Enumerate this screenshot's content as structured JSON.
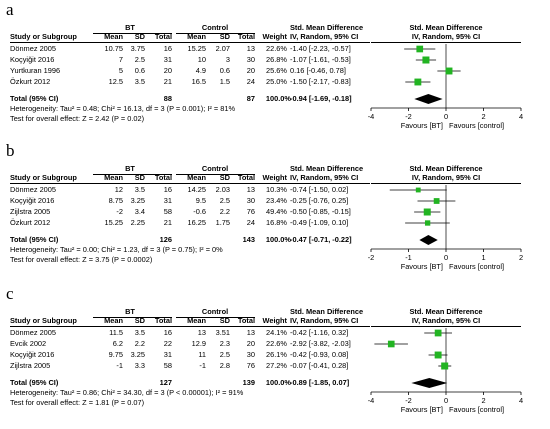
{
  "panels": [
    {
      "label": "a",
      "group1": "BT",
      "group2": "Control",
      "headers": {
        "study": "Study or Subgroup",
        "mean1": "Mean",
        "sd1": "SD",
        "total1": "Total",
        "mean2": "Mean",
        "sd2": "SD",
        "total2": "Total",
        "weight": "Weight",
        "smd_top": "Std. Mean Difference",
        "smd_method": "IV, Random, 95% CI",
        "plot_top": "Std. Mean Difference",
        "plot_method": "IV, Random, 95% CI"
      },
      "rows": [
        {
          "study": "Dönmez 2005",
          "mean1": "10.75",
          "sd1": "3.75",
          "total1": "16",
          "mean2": "15.25",
          "sd2": "2.07",
          "total2": "13",
          "weight": "22.6%",
          "ci_text": "-1.40 [-2.23, -0.57]"
        },
        {
          "study": "Koçyiğit 2016",
          "mean1": "7",
          "sd1": "2.5",
          "total1": "31",
          "mean2": "10",
          "sd2": "3",
          "total2": "30",
          "weight": "26.8%",
          "ci_text": "-1.07 [-1.61, -0.53]"
        },
        {
          "study": "Yurtkuran 1996",
          "mean1": "5",
          "sd1": "0.6",
          "total1": "20",
          "mean2": "4.9",
          "sd2": "0.6",
          "total2": "20",
          "weight": "25.6%",
          "ci_text": "0.16 [-0.46, 0.78]"
        },
        {
          "study": "Özkurt 2012",
          "mean1": "12.5",
          "sd1": "3.5",
          "total1": "21",
          "mean2": "16.5",
          "sd2": "1.5",
          "total2": "24",
          "weight": "25.0%",
          "ci_text": "-1.50 [-2.17, -0.83]"
        }
      ],
      "total": {
        "label": "Total (95% CI)",
        "total1": "88",
        "total2": "87",
        "weight": "100.0%",
        "ci_text": "-0.94 [-1.69, -0.18]"
      },
      "heterogeneity": "Heterogeneity: Tau² = 0.48; Chi² = 16.13, df = 3 (P = 0.001); I² = 81%",
      "overall": "Test for overall effect: Z = 2.42 (P = 0.02)",
      "axis": {
        "ticks": [
          "-4",
          "-2",
          "0",
          "2",
          "4"
        ],
        "left_label": "Favours [BT]",
        "right_label": "Favours [control]"
      }
    },
    {
      "label": "b",
      "group1": "BT",
      "group2": "Control",
      "headers": {
        "study": "Study or Subgroup",
        "mean1": "Mean",
        "sd1": "SD",
        "total1": "Total",
        "mean2": "Mean",
        "sd2": "SD",
        "total2": "Total",
        "weight": "Weight",
        "smd_top": "Std. Mean Difference",
        "smd_method": "IV, Random, 95% CI",
        "plot_top": "Std. Mean Difference",
        "plot_method": "IV, Random, 95% CI"
      },
      "rows": [
        {
          "study": "Dönmez 2005",
          "mean1": "12",
          "sd1": "3.5",
          "total1": "16",
          "mean2": "14.25",
          "sd2": "2.03",
          "total2": "13",
          "weight": "10.3%",
          "ci_text": "-0.74 [-1.50, 0.02]"
        },
        {
          "study": "Koçyiğit 2016",
          "mean1": "8.75",
          "sd1": "3.25",
          "total1": "31",
          "mean2": "9.5",
          "sd2": "2.5",
          "total2": "30",
          "weight": "23.4%",
          "ci_text": "-0.25 [-0.76, 0.25]"
        },
        {
          "study": "Zijlstra 2005",
          "mean1": "-2",
          "sd1": "3.4",
          "total1": "58",
          "mean2": "-0.6",
          "sd2": "2.2",
          "total2": "76",
          "weight": "49.4%",
          "ci_text": "-0.50 [-0.85, -0.15]"
        },
        {
          "study": "Özkurt 2012",
          "mean1": "15.25",
          "sd1": "2.25",
          "total1": "21",
          "mean2": "16.25",
          "sd2": "1.75",
          "total2": "24",
          "weight": "16.8%",
          "ci_text": "-0.49 [-1.09, 0.10]"
        }
      ],
      "total": {
        "label": "Total (95% CI)",
        "total1": "126",
        "total2": "143",
        "weight": "100.0%",
        "ci_text": "-0.47 [-0.71, -0.22]"
      },
      "heterogeneity": "Heterogeneity: Tau² = 0.00; Chi² = 1.23, df = 3 (P = 0.75); I² = 0%",
      "overall": "Test for overall effect: Z = 3.75 (P = 0.0002)",
      "axis": {
        "ticks": [
          "-2",
          "-1",
          "0",
          "1",
          "2"
        ],
        "left_label": "Favours [BT]",
        "right_label": "Favours [control]"
      }
    },
    {
      "label": "c",
      "group1": "BT",
      "group2": "Control",
      "headers": {
        "study": "Study or Subgroup",
        "mean1": "Mean",
        "sd1": "SD",
        "total1": "Total",
        "mean2": "Mean",
        "sd2": "SD",
        "total2": "Total",
        "weight": "Weight",
        "smd_top": "Std. Mean Difference",
        "smd_method": "IV, Random, 95% CI",
        "plot_top": "Std. Mean Difference",
        "plot_method": "IV, Random, 95% CI"
      },
      "rows": [
        {
          "study": "Dönmez 2005",
          "mean1": "11.5",
          "sd1": "3.5",
          "total1": "16",
          "mean2": "13",
          "sd2": "3.51",
          "total2": "13",
          "weight": "24.1%",
          "ci_text": "-0.42 [-1.16, 0.32]"
        },
        {
          "study": "Evcik 2002",
          "mean1": "6.2",
          "sd1": "2.2",
          "total1": "22",
          "mean2": "12.9",
          "sd2": "2.3",
          "total2": "20",
          "weight": "22.6%",
          "ci_text": "-2.92 [-3.82, -2.03]"
        },
        {
          "study": "Koçyiğit 2016",
          "mean1": "9.75",
          "sd1": "3.25",
          "total1": "31",
          "mean2": "11",
          "sd2": "2.5",
          "total2": "30",
          "weight": "26.1%",
          "ci_text": "-0.42 [-0.93, 0.08]"
        },
        {
          "study": "Zijlstra 2005",
          "mean1": "-1",
          "sd1": "3.3",
          "total1": "58",
          "mean2": "-1",
          "sd2": "2.8",
          "total2": "76",
          "weight": "27.2%",
          "ci_text": "-0.07 [-0.41, 0.28]"
        }
      ],
      "total": {
        "label": "Total (95% CI)",
        "total1": "127",
        "total2": "139",
        "weight": "100.0%",
        "ci_text": "-0.89 [-1.85, 0.07]"
      },
      "heterogeneity": "Heterogeneity: Tau² = 0.86; Chi² = 34.30, df = 3 (P < 0.00001); I² = 91%",
      "overall": "Test for overall effect: Z = 1.81 (P = 0.07)",
      "axis": {
        "ticks": [
          "-4",
          "-2",
          "0",
          "2",
          "4"
        ],
        "left_label": "Favours [BT]",
        "right_label": "Favours [control]"
      }
    }
  ],
  "colors": {
    "square": "#22b422",
    "diamond": "#000000",
    "line": "#000000"
  },
  "chart_data": [
    {
      "type": "forest",
      "panel": "a",
      "studies": [
        "Dönmez 2005",
        "Koçyiğit 2016",
        "Yurtkuran 1996",
        "Özkurt 2012"
      ],
      "estimate": [
        -1.4,
        -1.07,
        0.16,
        -1.5
      ],
      "ci_low": [
        -2.23,
        -1.61,
        -0.46,
        -2.17
      ],
      "ci_high": [
        -0.57,
        -0.53,
        0.78,
        -0.83
      ],
      "weight": [
        22.6,
        26.8,
        25.6,
        25.0
      ],
      "pooled": {
        "estimate": -0.94,
        "ci_low": -1.69,
        "ci_high": -0.18
      },
      "xlim": [
        -4,
        4
      ],
      "xticks": [
        -4,
        -2,
        0,
        2,
        4
      ]
    },
    {
      "type": "forest",
      "panel": "b",
      "studies": [
        "Dönmez 2005",
        "Koçyiğit 2016",
        "Zijlstra 2005",
        "Özkurt 2012"
      ],
      "estimate": [
        -0.74,
        -0.25,
        -0.5,
        -0.49
      ],
      "ci_low": [
        -1.5,
        -0.76,
        -0.85,
        -1.09
      ],
      "ci_high": [
        0.02,
        0.25,
        -0.15,
        0.1
      ],
      "weight": [
        10.3,
        23.4,
        49.4,
        16.8
      ],
      "pooled": {
        "estimate": -0.47,
        "ci_low": -0.71,
        "ci_high": -0.22
      },
      "xlim": [
        -2,
        2
      ],
      "xticks": [
        -2,
        -1,
        0,
        1,
        2
      ]
    },
    {
      "type": "forest",
      "panel": "c",
      "studies": [
        "Dönmez 2005",
        "Evcik 2002",
        "Koçyiğit 2016",
        "Zijlstra 2005"
      ],
      "estimate": [
        -0.42,
        -2.92,
        -0.42,
        -0.07
      ],
      "ci_low": [
        -1.16,
        -3.82,
        -0.93,
        -0.41
      ],
      "ci_high": [
        0.32,
        -2.03,
        0.08,
        0.28
      ],
      "weight": [
        24.1,
        22.6,
        26.1,
        27.2
      ],
      "pooled": {
        "estimate": -0.89,
        "ci_low": -1.85,
        "ci_high": 0.07
      },
      "xlim": [
        -4,
        4
      ],
      "xticks": [
        -4,
        -2,
        0,
        2,
        4
      ]
    }
  ]
}
